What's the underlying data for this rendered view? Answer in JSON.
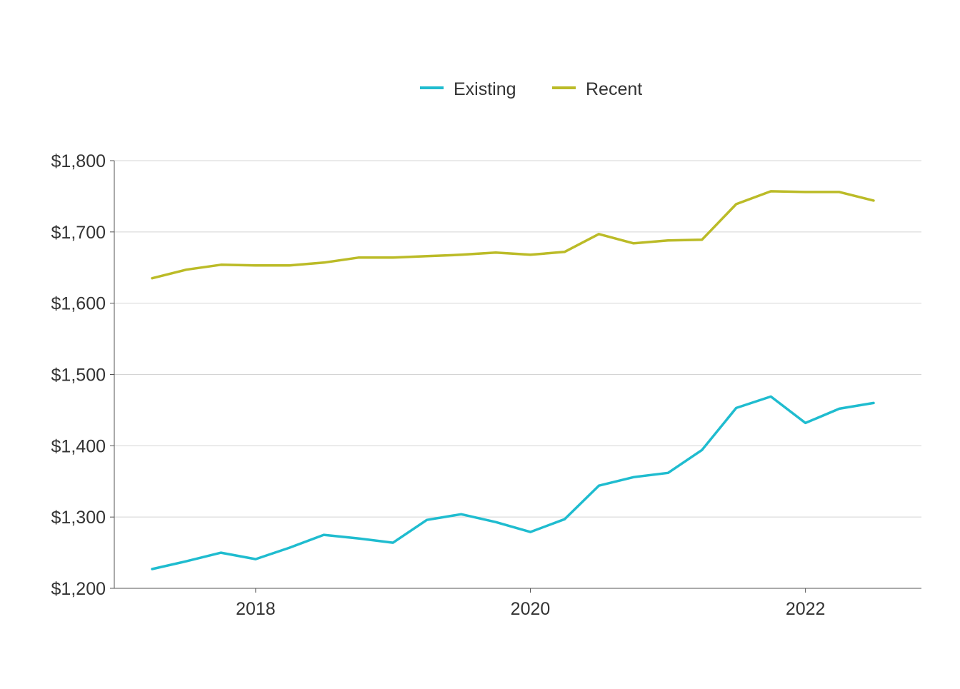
{
  "chart_data": {
    "type": "line",
    "title": "",
    "xlabel": "",
    "ylabel": "",
    "x": [
      "2017-04-01",
      "2017-07-01",
      "2017-10-01",
      "2018-01-01",
      "2018-04-01",
      "2018-07-01",
      "2018-10-01",
      "2019-01-01",
      "2019-04-01",
      "2019-07-01",
      "2019-10-01",
      "2020-01-01",
      "2020-04-01",
      "2020-07-01",
      "2020-10-01",
      "2021-01-01",
      "2021-04-01",
      "2021-07-01",
      "2021-10-01",
      "2022-01-01",
      "2022-04-01",
      "2022-07-01"
    ],
    "series": [
      {
        "name": "Existing",
        "color": "#1FBCCF",
        "values": [
          1227,
          1238,
          1250,
          1241,
          1257,
          1275,
          1270,
          1264,
          1296,
          1304,
          1293,
          1279,
          1297,
          1344,
          1356,
          1362,
          1394,
          1453,
          1469,
          1432,
          1452,
          1460
        ]
      },
      {
        "name": "Recent",
        "color": "#BBBB27",
        "values": [
          1635,
          1647,
          1654,
          1653,
          1653,
          1657,
          1664,
          1664,
          1666,
          1668,
          1671,
          1668,
          1672,
          1697,
          1684,
          1688,
          1689,
          1739,
          1757,
          1756,
          1756,
          1744
        ]
      }
    ],
    "ylim": [
      1200,
      1800
    ],
    "yticks": [
      1200,
      1300,
      1400,
      1500,
      1600,
      1700,
      1800
    ],
    "ytick_labels": [
      "$1,200",
      "$1,300",
      "$1,400",
      "$1,500",
      "$1,600",
      "$1,700",
      "$1,800"
    ],
    "xticks": [
      "2018-01-01",
      "2020-01-01",
      "2022-01-01"
    ],
    "xtick_labels": [
      "2018",
      "2020",
      "2022"
    ],
    "grid": "horizontal",
    "legend_position": "top-center"
  }
}
